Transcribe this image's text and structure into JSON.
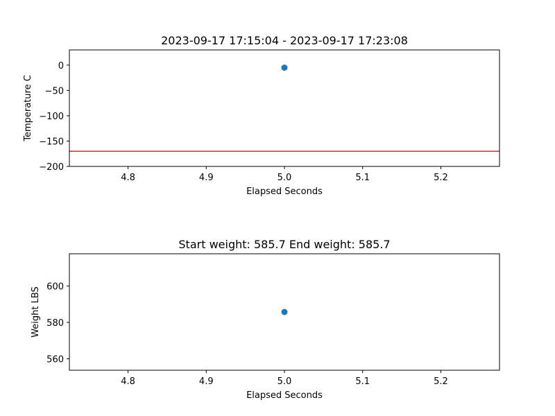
{
  "chart_data": [
    {
      "type": "scatter",
      "title": "2023-09-17 17:15:04 - 2023-09-17 17:23:08",
      "xlabel": "Elapsed Seconds",
      "ylabel": "Temperature C",
      "xlim": [
        4.725,
        5.275
      ],
      "ylim": [
        -200,
        30
      ],
      "xticks": [
        4.8,
        4.9,
        5.0,
        5.1,
        5.2
      ],
      "xtick_labels": [
        "4.8",
        "4.9",
        "5.0",
        "5.1",
        "5.2"
      ],
      "yticks": [
        0,
        -50,
        -100,
        -150,
        -200
      ],
      "ytick_labels": [
        "0",
        "−50",
        "−100",
        "−150",
        "−200"
      ],
      "grid": false,
      "series": [
        {
          "color": "#1f77b4",
          "points": [
            {
              "x": 5.0,
              "y": -5
            }
          ]
        }
      ],
      "hlines": [
        {
          "y": -170,
          "color": "#d62728"
        }
      ]
    },
    {
      "type": "scatter",
      "title": "Start weight: 585.7 End weight: 585.7",
      "xlabel": "Elapsed Seconds",
      "ylabel": "Weight LBS",
      "xlim": [
        4.725,
        5.275
      ],
      "ylim": [
        553.7,
        617.7
      ],
      "xticks": [
        4.8,
        4.9,
        5.0,
        5.1,
        5.2
      ],
      "xtick_labels": [
        "4.8",
        "4.9",
        "5.0",
        "5.1",
        "5.2"
      ],
      "yticks": [
        600,
        580,
        560
      ],
      "ytick_labels": [
        "600",
        "580",
        "560"
      ],
      "grid": false,
      "series": [
        {
          "color": "#1f77b4",
          "points": [
            {
              "x": 5.0,
              "y": 585.7
            }
          ]
        }
      ],
      "hlines": []
    }
  ]
}
